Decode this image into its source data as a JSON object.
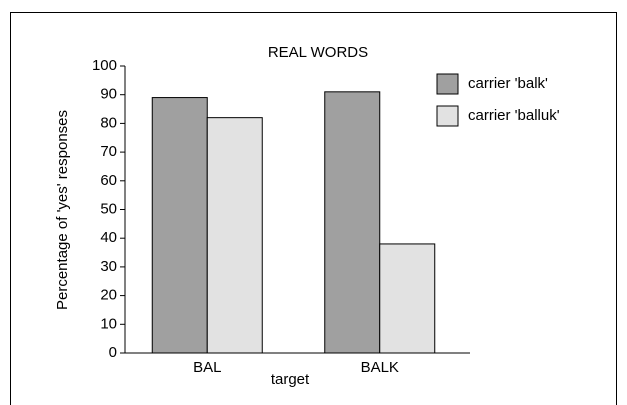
{
  "chart_data": {
    "type": "bar",
    "title": "REAL WORDS",
    "x_label": "target",
    "y_label": "Percentage of 'yes' responses",
    "categories": [
      "BAL",
      "BALK"
    ],
    "series": [
      {
        "name": "carrier 'balk'",
        "color": "#a0a0a0",
        "values": [
          89,
          91
        ]
      },
      {
        "name": "carrier 'balluk'",
        "color": "#e2e2e2",
        "values": [
          82,
          38
        ]
      }
    ],
    "ylim": [
      0,
      100
    ],
    "yticks": [
      0,
      10,
      20,
      30,
      40,
      50,
      60,
      70,
      80,
      90,
      100
    ],
    "legend": "right"
  }
}
